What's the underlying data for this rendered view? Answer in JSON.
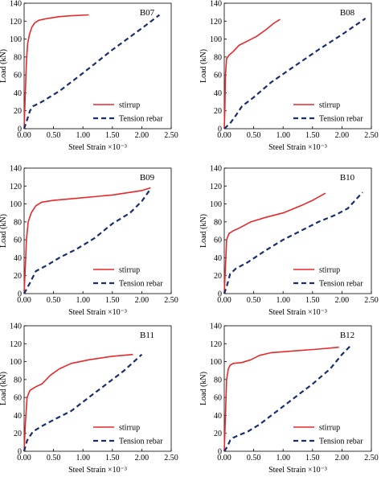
{
  "chart_data": [
    {
      "type": "line",
      "title": "B07",
      "xlabel": "Steel Strain ×10⁻³",
      "ylabel": "Load (kN)",
      "xlim": [
        0,
        2.5
      ],
      "ylim": [
        0,
        140
      ],
      "xticks": [
        "0.00",
        "0.50",
        "1.00",
        "1.50",
        "2.00",
        "2.50"
      ],
      "yticks": [
        "0",
        "20",
        "40",
        "60",
        "80",
        "100",
        "120",
        "140"
      ],
      "legend_position": "lower-right",
      "series": [
        {
          "name": "stirrup",
          "color": "#e8292b",
          "style": "solid",
          "x": [
            0,
            0.02,
            0.04,
            0.06,
            0.09,
            0.13,
            0.18,
            0.25,
            0.4,
            0.6,
            0.8,
            1.1
          ],
          "y": [
            0,
            40,
            75,
            95,
            105,
            113,
            118,
            121,
            123,
            125,
            126,
            127
          ]
        },
        {
          "name": "Tension rebar",
          "color": "#1a2e6e",
          "style": "dashed",
          "x": [
            0,
            0.05,
            0.1,
            0.15,
            0.3,
            0.6,
            1.0,
            1.5,
            2.0,
            2.3
          ],
          "y": [
            0,
            10,
            20,
            25,
            30,
            42,
            62,
            88,
            112,
            127
          ]
        }
      ]
    },
    {
      "type": "line",
      "title": "B08",
      "xlabel": "Steel Strain ×10⁻³",
      "ylabel": "Load (kN)",
      "xlim": [
        0,
        2.5
      ],
      "ylim": [
        0,
        140
      ],
      "xticks": [
        "0.00",
        "0.50",
        "1.00",
        "1.50",
        "2.00",
        "2.50"
      ],
      "yticks": [
        "0",
        "20",
        "40",
        "60",
        "80",
        "100",
        "120",
        "140"
      ],
      "legend_position": "lower-right",
      "series": [
        {
          "name": "stirrup",
          "color": "#e8292b",
          "style": "solid",
          "x": [
            0,
            0.01,
            0.02,
            0.04,
            0.08,
            0.15,
            0.25,
            0.4,
            0.55,
            0.7,
            0.85,
            0.95
          ],
          "y": [
            0,
            20,
            60,
            78,
            82,
            86,
            93,
            98,
            103,
            110,
            118,
            122
          ]
        },
        {
          "name": "Tension rebar",
          "color": "#1a2e6e",
          "style": "dashed",
          "x": [
            0,
            0.1,
            0.2,
            0.3,
            0.5,
            0.8,
            1.2,
            1.6,
            2.0,
            2.4
          ],
          "y": [
            0,
            6,
            15,
            25,
            35,
            52,
            70,
            88,
            105,
            123
          ]
        }
      ]
    },
    {
      "type": "line",
      "title": "B09",
      "xlabel": "Steel Strain ×10⁻³",
      "ylabel": "Load (kN)",
      "xlim": [
        0,
        2.5
      ],
      "ylim": [
        0,
        140
      ],
      "xticks": [
        "0.00",
        "0.50",
        "1.00",
        "1.50",
        "2.00",
        "2.50"
      ],
      "yticks": [
        "0",
        "20",
        "40",
        "60",
        "80",
        "100",
        "120",
        "140"
      ],
      "legend_position": "lower-right",
      "series": [
        {
          "name": "stirrup",
          "color": "#e8292b",
          "style": "solid",
          "x": [
            0,
            0.02,
            0.04,
            0.07,
            0.12,
            0.2,
            0.3,
            0.5,
            1.0,
            1.5,
            2.0,
            2.15
          ],
          "y": [
            0,
            30,
            60,
            80,
            90,
            98,
            102,
            104,
            107,
            110,
            115,
            118
          ]
        },
        {
          "name": "Tension rebar",
          "color": "#1a2e6e",
          "style": "dashed",
          "x": [
            0,
            0.1,
            0.2,
            0.4,
            0.6,
            0.9,
            1.2,
            1.5,
            1.8,
            2.0,
            2.15
          ],
          "y": [
            0,
            12,
            25,
            32,
            40,
            50,
            62,
            78,
            90,
            103,
            117
          ]
        }
      ]
    },
    {
      "type": "line",
      "title": "B10",
      "xlabel": "Steel Strain ×10⁻³",
      "ylabel": "Load (kN)",
      "xlim": [
        0,
        2.5
      ],
      "ylim": [
        0,
        140
      ],
      "xticks": [
        "0.00",
        "0.50",
        "1.00",
        "1.50",
        "2.00",
        "2.50"
      ],
      "yticks": [
        "0",
        "20",
        "40",
        "60",
        "80",
        "100",
        "120",
        "140"
      ],
      "legend_position": "lower-right",
      "series": [
        {
          "name": "stirrup",
          "color": "#e8292b",
          "style": "solid",
          "x": [
            0,
            0.02,
            0.04,
            0.08,
            0.15,
            0.25,
            0.45,
            0.7,
            1.0,
            1.3,
            1.5,
            1.72
          ],
          "y": [
            0,
            30,
            60,
            67,
            70,
            73,
            80,
            85,
            90,
            98,
            104,
            112
          ]
        },
        {
          "name": "Tension rebar",
          "color": "#1a2e6e",
          "style": "dashed",
          "x": [
            0,
            0.05,
            0.1,
            0.2,
            0.4,
            0.7,
            1.0,
            1.3,
            1.6,
            1.9,
            2.1,
            2.35
          ],
          "y": [
            0,
            10,
            22,
            28,
            35,
            48,
            60,
            70,
            80,
            88,
            95,
            113
          ]
        }
      ]
    },
    {
      "type": "line",
      "title": "B11",
      "xlabel": "Steel Strain ×10⁻³",
      "ylabel": "Load (kN)",
      "xlim": [
        0,
        2.5
      ],
      "ylim": [
        0,
        140
      ],
      "xticks": [
        "0.00",
        "0.50",
        "1.00",
        "1.50",
        "2.00",
        "2.50"
      ],
      "yticks": [
        "0",
        "20",
        "40",
        "60",
        "80",
        "100",
        "120",
        "140"
      ],
      "legend_position": "lower-right",
      "series": [
        {
          "name": "stirrup",
          "color": "#e8292b",
          "style": "solid",
          "x": [
            0,
            0.02,
            0.05,
            0.1,
            0.2,
            0.3,
            0.45,
            0.6,
            0.8,
            1.1,
            1.5,
            1.85
          ],
          "y": [
            0,
            30,
            60,
            68,
            72,
            75,
            85,
            92,
            98,
            102,
            106,
            108
          ]
        },
        {
          "name": "Tension rebar",
          "color": "#1a2e6e",
          "style": "dashed",
          "x": [
            0,
            0.05,
            0.15,
            0.3,
            0.5,
            0.8,
            1.1,
            1.4,
            1.7,
            2.0
          ],
          "y": [
            0,
            12,
            22,
            28,
            35,
            45,
            60,
            75,
            90,
            108
          ]
        }
      ]
    },
    {
      "type": "line",
      "title": "B12",
      "xlabel": "Steel Strain ×10⁻³",
      "ylabel": "Load (kN)",
      "xlim": [
        0,
        2.5
      ],
      "ylim": [
        0,
        140
      ],
      "xticks": [
        "0.00",
        "0.50",
        "1.00",
        "1.50",
        "2.00",
        "2.50"
      ],
      "yticks": [
        "0",
        "20",
        "40",
        "60",
        "80",
        "100",
        "120",
        "140"
      ],
      "legend_position": "lower-right",
      "series": [
        {
          "name": "stirrup",
          "color": "#e8292b",
          "style": "solid",
          "x": [
            0,
            0.02,
            0.04,
            0.07,
            0.1,
            0.15,
            0.3,
            0.45,
            0.6,
            0.8,
            1.2,
            1.6,
            1.95
          ],
          "y": [
            0,
            40,
            80,
            92,
            96,
            98,
            99,
            102,
            107,
            110,
            112,
            114,
            116
          ]
        },
        {
          "name": "Tension rebar",
          "color": "#1a2e6e",
          "style": "dashed",
          "x": [
            0,
            0.05,
            0.1,
            0.15,
            0.25,
            0.4,
            0.6,
            0.9,
            1.2,
            1.5,
            1.8,
            2.0,
            2.15
          ],
          "y": [
            0,
            5,
            12,
            15,
            18,
            22,
            30,
            45,
            60,
            75,
            92,
            108,
            118
          ]
        }
      ]
    }
  ]
}
